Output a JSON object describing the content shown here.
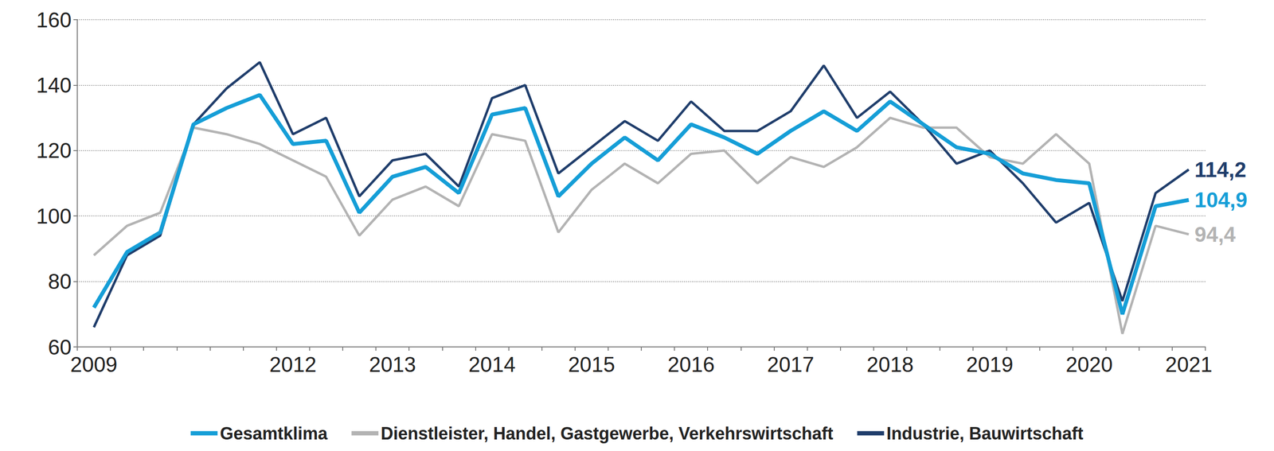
{
  "chart_data": {
    "type": "line",
    "categories": [
      "2009",
      null,
      null,
      null,
      null,
      null,
      "2012",
      null,
      null,
      "2013",
      null,
      null,
      "2014",
      null,
      null,
      "2015",
      null,
      null,
      "2016",
      null,
      null,
      "2017",
      null,
      null,
      "2018",
      null,
      null,
      "2019",
      null,
      null,
      "2020",
      null,
      null,
      "2021"
    ],
    "series": [
      {
        "name": "Gesamtklima",
        "color": "#159ed7",
        "values": [
          72,
          89,
          95,
          128,
          133,
          137,
          122,
          123,
          101,
          112,
          115,
          107,
          131,
          133,
          106,
          116,
          124,
          117,
          128,
          124,
          119,
          126,
          132,
          126,
          135,
          128,
          121,
          119,
          113,
          111,
          110,
          70,
          103,
          104.9
        ],
        "value_labels": [
          null,
          null,
          null,
          null,
          null,
          null,
          null,
          null,
          null,
          null,
          null,
          null,
          null,
          null,
          null,
          null,
          null,
          null,
          null,
          null,
          null,
          null,
          null,
          null,
          null,
          null,
          null,
          null,
          null,
          null,
          null,
          null,
          null,
          "104,9"
        ]
      },
      {
        "name": "Dienstleister, Handel, Gastgewerbe, Verkehrswirtschaft",
        "color": "#b3b3b3",
        "values": [
          88,
          97,
          101,
          127,
          125,
          122,
          117,
          112,
          94,
          105,
          109,
          103,
          125,
          123,
          95,
          108,
          116,
          110,
          119,
          120,
          110,
          118,
          115,
          121,
          130,
          127,
          127,
          118,
          116,
          125,
          116,
          64,
          97,
          94.4
        ],
        "value_labels": [
          null,
          null,
          null,
          null,
          null,
          null,
          null,
          null,
          null,
          null,
          null,
          null,
          null,
          null,
          null,
          null,
          null,
          null,
          null,
          null,
          null,
          null,
          null,
          null,
          null,
          null,
          null,
          null,
          null,
          null,
          null,
          null,
          null,
          "94,4"
        ]
      },
      {
        "name": "Industrie, Bauwirtschaft",
        "color": "#1f3d6b",
        "values": [
          66,
          88,
          94,
          128,
          139,
          147,
          125,
          130,
          106,
          117,
          119,
          109,
          136,
          140,
          113,
          121,
          129,
          123,
          135,
          126,
          126,
          132,
          146,
          130,
          138,
          128,
          116,
          120,
          110,
          98,
          104,
          74,
          107,
          114.2
        ],
        "value_labels": [
          null,
          null,
          null,
          null,
          null,
          null,
          null,
          null,
          null,
          null,
          null,
          null,
          null,
          null,
          null,
          null,
          null,
          null,
          null,
          null,
          null,
          null,
          null,
          null,
          null,
          null,
          null,
          null,
          null,
          null,
          null,
          null,
          null,
          "114,2"
        ]
      }
    ],
    "ylim": [
      60,
      160
    ],
    "yticks": [
      60,
      80,
      100,
      120,
      140,
      160
    ],
    "grid": true,
    "legend": "bottom"
  }
}
